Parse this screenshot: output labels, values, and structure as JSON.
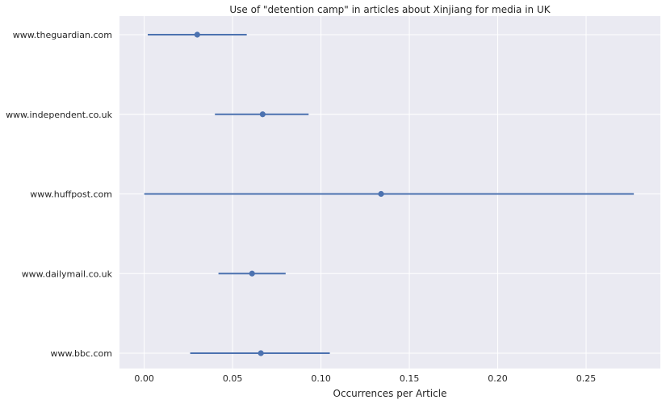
{
  "chart_data": {
    "type": "pointplot",
    "title": "Use of \"detention camp\" in articles about Xinjiang for media in UK",
    "xlabel": "Occurrences per Article",
    "ylabel": "",
    "xlim": [
      -0.014,
      0.292
    ],
    "x_ticks": [
      "0.00",
      "0.05",
      "0.10",
      "0.15",
      "0.20",
      "0.25"
    ],
    "x_tick_values": [
      0.0,
      0.05,
      0.1,
      0.15,
      0.2,
      0.25
    ],
    "grid": true,
    "categories": [
      "www.theguardian.com",
      "www.independent.co.uk",
      "www.huffpost.com",
      "www.dailymail.co.uk",
      "www.bbc.com"
    ],
    "series": [
      {
        "values": [
          0.03,
          0.067,
          0.134,
          0.061,
          0.066
        ],
        "ci_low": [
          0.002,
          0.04,
          0.0,
          0.042,
          0.026
        ],
        "ci_high": [
          0.058,
          0.093,
          0.277,
          0.08,
          0.105
        ],
        "color": "#4c72b0"
      }
    ],
    "background": "#eaeaf2",
    "grid_color": "#ffffff"
  }
}
